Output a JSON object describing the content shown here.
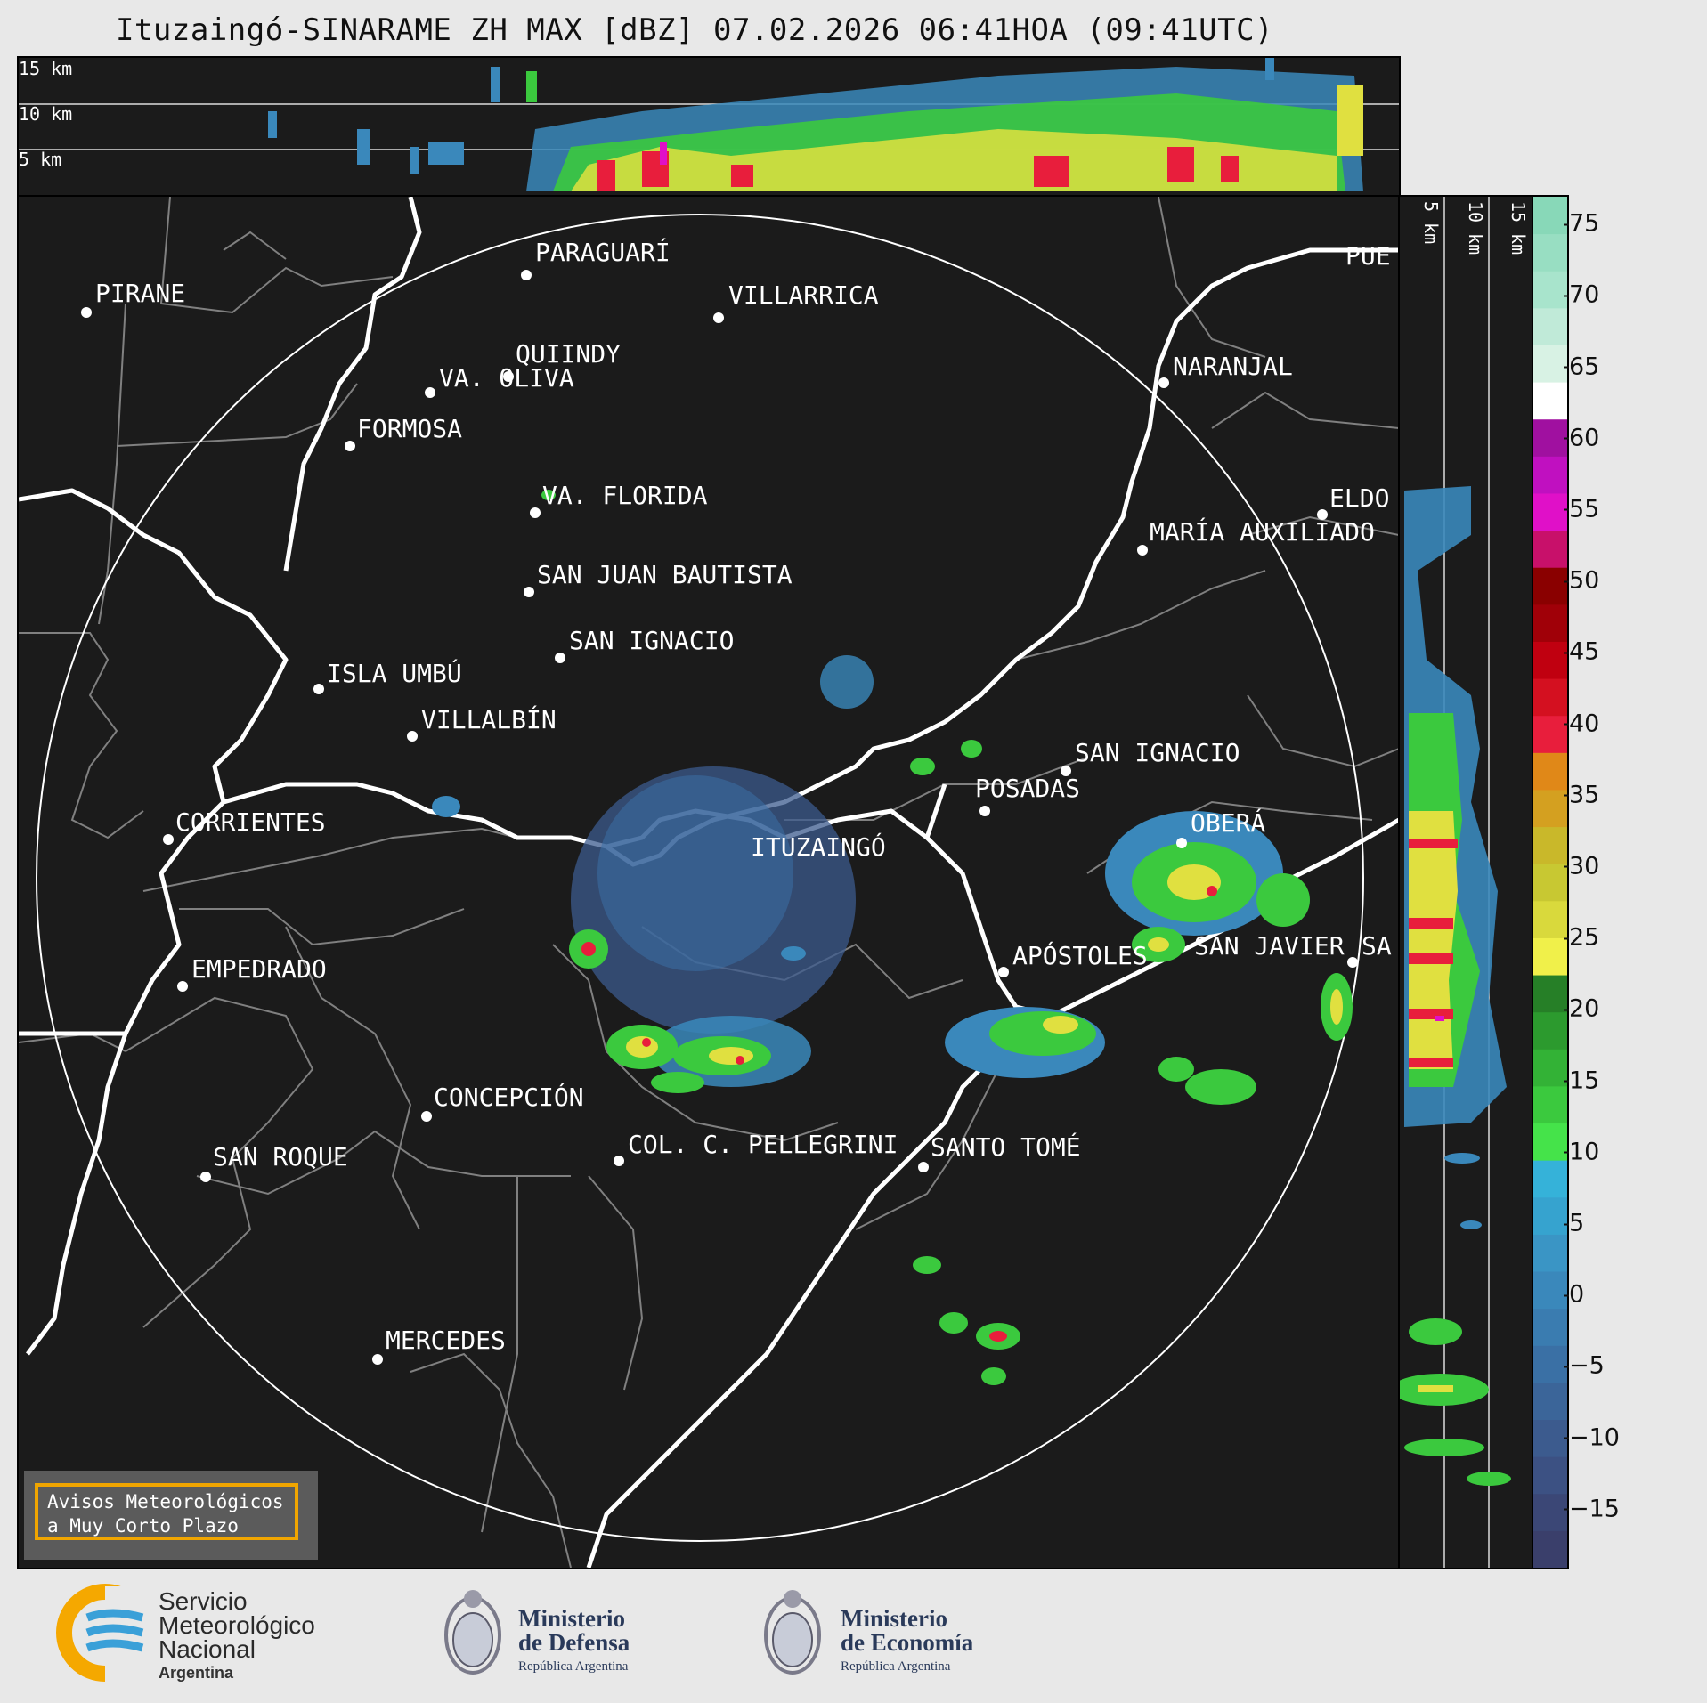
{
  "header": {
    "title": "Ituzaingó-SINARAME ZH MAX [dBZ] 07.02.2026 06:41HOA (09:41UTC)"
  },
  "top_section": {
    "height_labels": [
      "15 km",
      "10 km",
      "5 km"
    ]
  },
  "side_section": {
    "height_labels": [
      "5 km",
      "10 km",
      "15 km"
    ]
  },
  "map": {
    "radar_site": "ITUZAINGÓ",
    "places": [
      {
        "name": "PIRANE"
      },
      {
        "name": "PARAGUARÍ"
      },
      {
        "name": "VILLARRICA"
      },
      {
        "name": "QUIINDY"
      },
      {
        "name": "VA. OLIVA"
      },
      {
        "name": "FORMOSA"
      },
      {
        "name": "NARANJAL"
      },
      {
        "name": "PUE"
      },
      {
        "name": "VA. FLORIDA"
      },
      {
        "name": "ELDO"
      },
      {
        "name": "MARÍA AUXILIADO"
      },
      {
        "name": "SAN JUAN BAUTISTA"
      },
      {
        "name": "SAN IGNACIO"
      },
      {
        "name": "ISLA UMBÚ"
      },
      {
        "name": "VILLALBÍN"
      },
      {
        "name": "SAN IGNACIO"
      },
      {
        "name": "POSADAS"
      },
      {
        "name": "OBERÁ"
      },
      {
        "name": "CORRIENTES"
      },
      {
        "name": "EMPEDRADO"
      },
      {
        "name": "APÓSTOLES"
      },
      {
        "name": "SAN JAVIER"
      },
      {
        "name": "SA"
      },
      {
        "name": "CONCEPCIÓN"
      },
      {
        "name": "COL. C. PELLEGRINI"
      },
      {
        "name": "SANTO TOMÉ"
      },
      {
        "name": "SAN ROQUE"
      },
      {
        "name": "MERCEDES"
      }
    ]
  },
  "colorbar": {
    "unit": "dBZ",
    "ticks": [
      "75",
      "70",
      "65",
      "60",
      "55",
      "50",
      "45",
      "40",
      "35",
      "30",
      "25",
      "20",
      "15",
      "10",
      "5",
      "0",
      "−5",
      "−10",
      "−15"
    ],
    "colors": [
      "#3a3f6b",
      "#3b4776",
      "#3c5183",
      "#3c5b8e",
      "#3b6599",
      "#3a70a5",
      "#3a7cb0",
      "#3a88bb",
      "#3a95c5",
      "#36a3cf",
      "#35b2d9",
      "#45e34a",
      "#3bc93e",
      "#33b236",
      "#2c9a2e",
      "#267f27",
      "#f0f04a",
      "#d9d93c",
      "#c8c832",
      "#c9b82a",
      "#d4a020",
      "#e08818",
      "#e81e3c",
      "#d41020",
      "#c00010",
      "#a00008",
      "#8a0000",
      "#c8106a",
      "#e010c8",
      "#c010c0",
      "#a010a0",
      "#ffffff",
      "#d8f2e4",
      "#c0ead8",
      "#a8e4cc",
      "#98dec2",
      "#88d8b8"
    ],
    "value_min": -19,
    "value_max": 77
  },
  "notice": {
    "line1": "Avisos Meteorológicos",
    "line2": "a Muy Corto Plazo"
  },
  "logos": {
    "smn": {
      "line1": "Servicio",
      "line2": "Meteorológico",
      "line3": "Nacional",
      "line4": "Argentina"
    },
    "defensa": {
      "line1": "Ministerio",
      "line2": "de Defensa",
      "line3": "República Argentina"
    },
    "economia": {
      "line1": "Ministerio",
      "line2": "de Economía",
      "line3": "República Argentina"
    }
  },
  "colors": {
    "background": "#1b1b1b",
    "page": "#e8e8e8",
    "river": "#ffffff",
    "border": "#808080",
    "notice_border": "#f0a500"
  }
}
